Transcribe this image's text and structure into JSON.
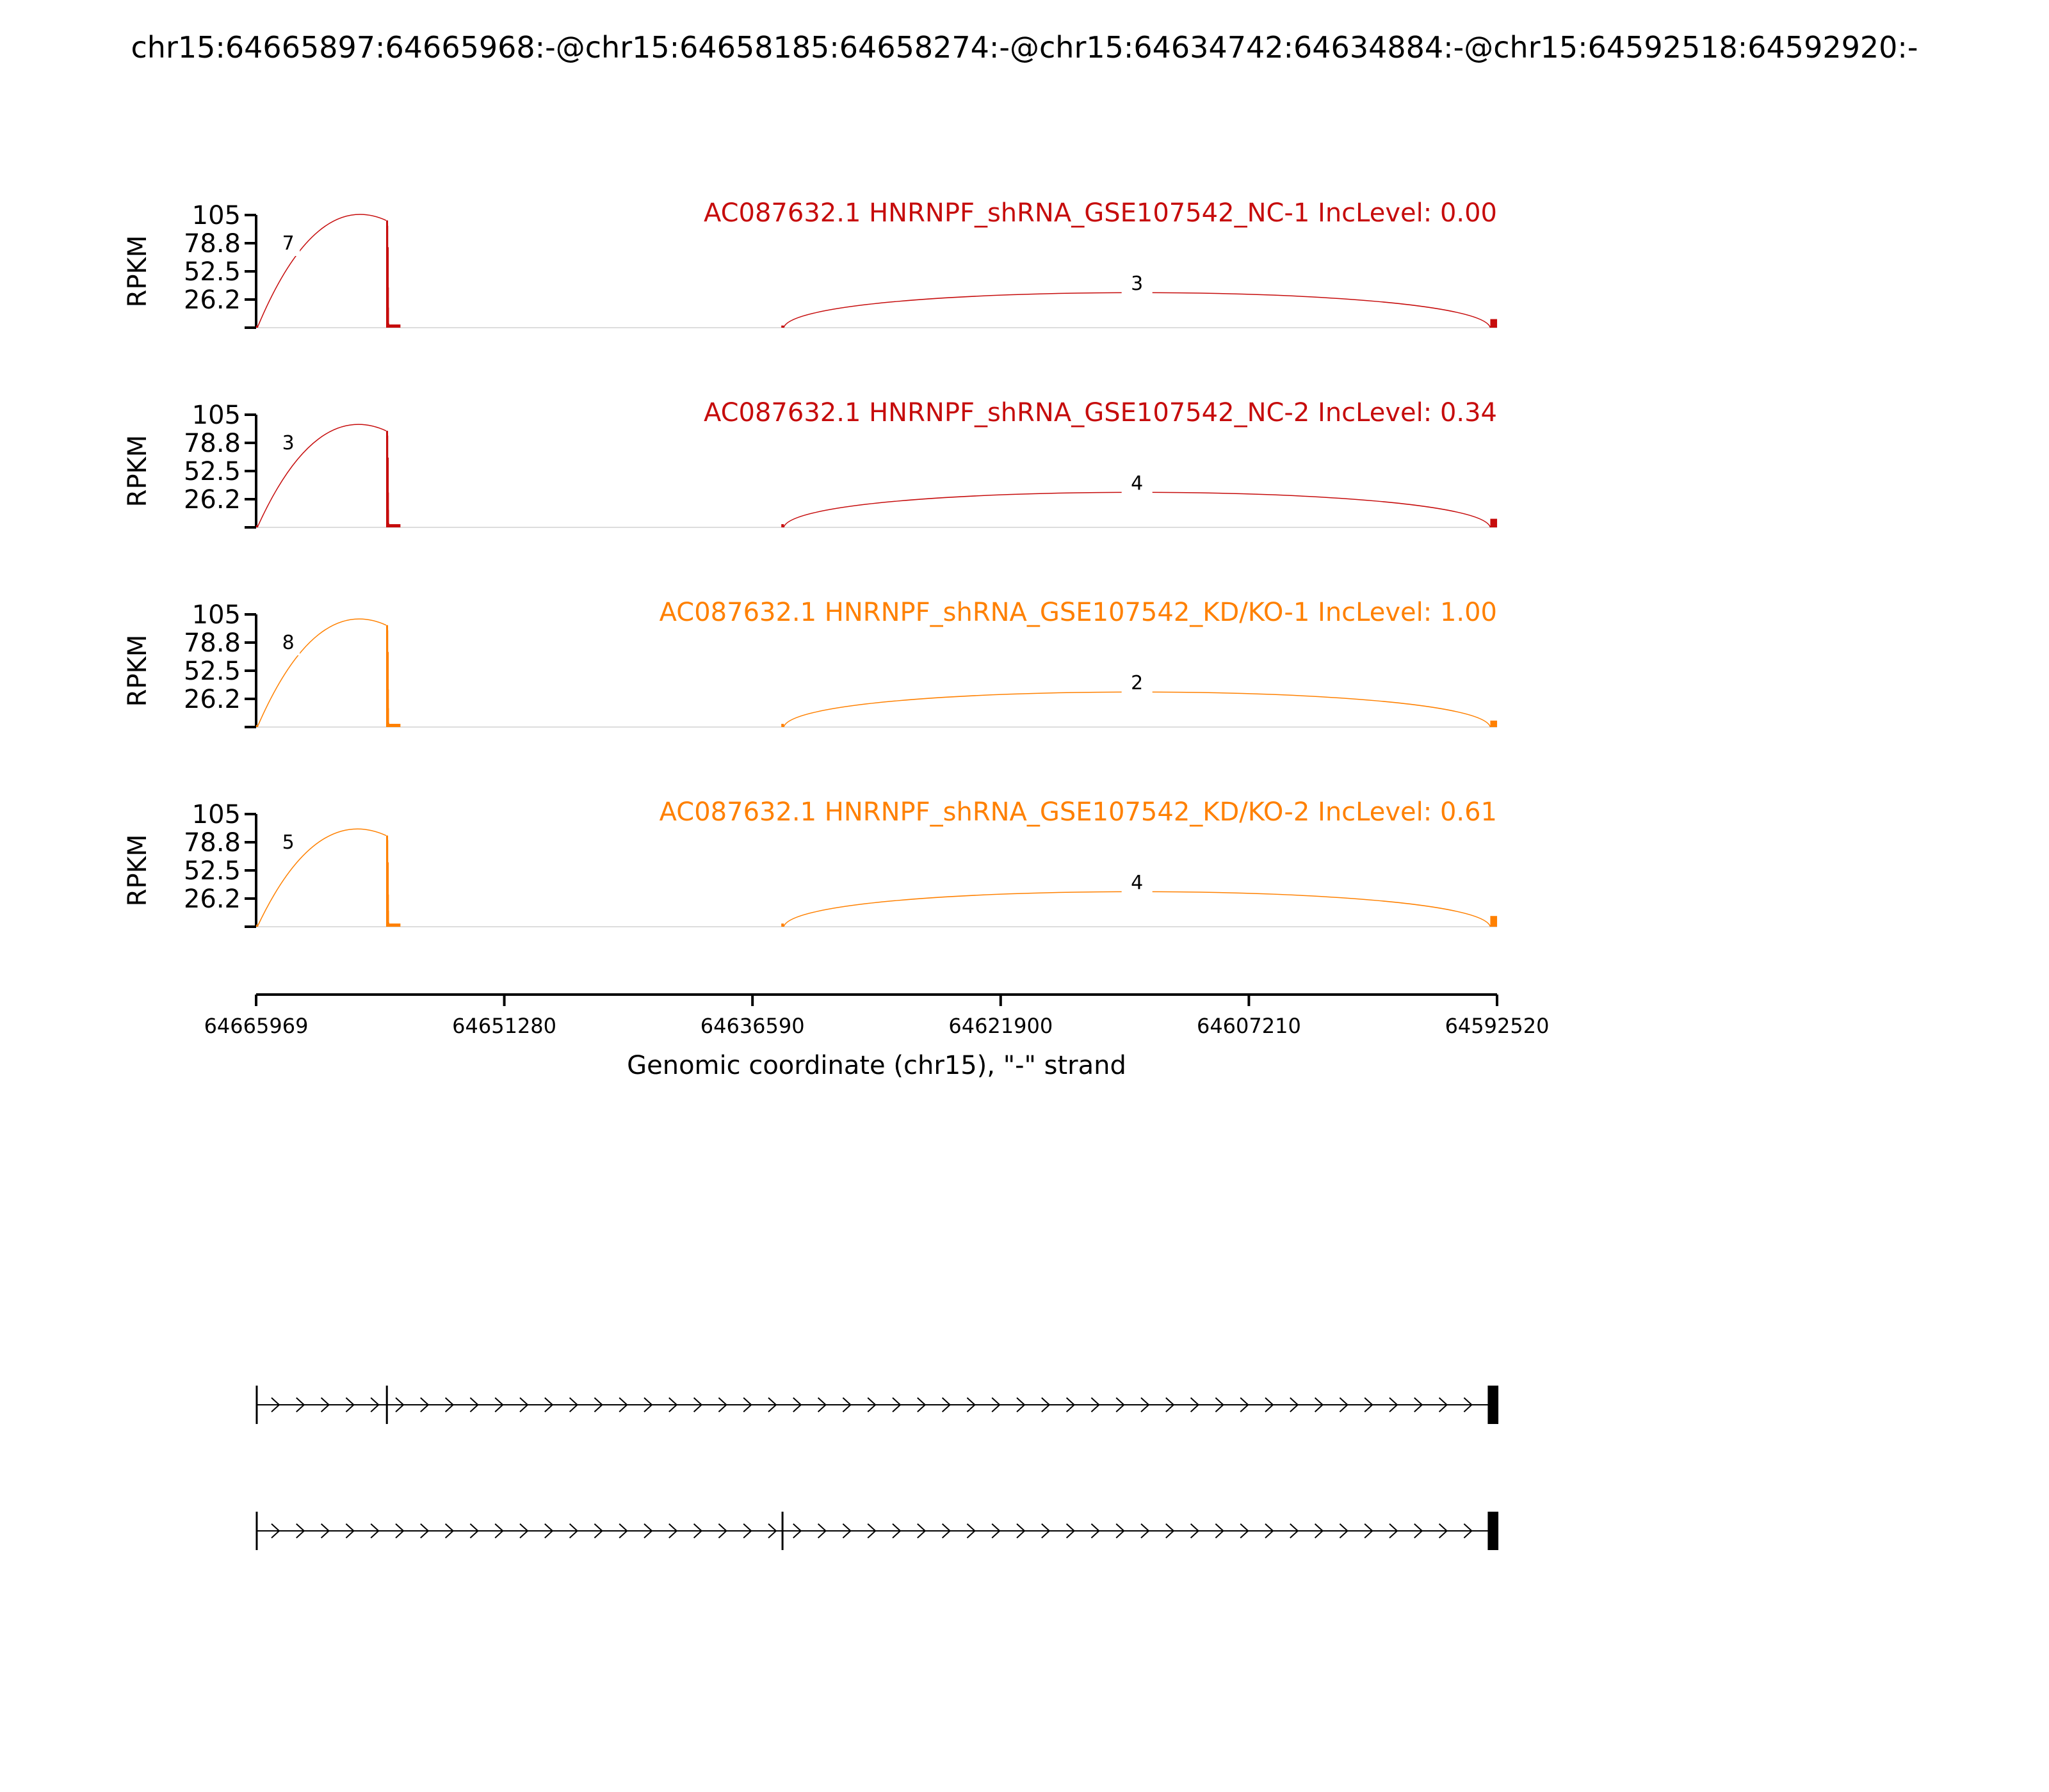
{
  "figure_title": "chr15:64665897:64665968:-@chr15:64658185:64658274:-@chr15:64634742:64634884:-@chr15:64592518:64592920:-",
  "chart_data": {
    "type": "sashimi",
    "x_range": [
      64665969,
      64592520
    ],
    "x_ticks": [
      "64665969",
      "64651280",
      "64636590",
      "64621900",
      "64607210",
      "64592520"
    ],
    "x_label": "Genomic coordinate (chr15), \"-\" strand",
    "y_label": "RPKM",
    "y_ticks": [
      "105",
      "78.8",
      "52.5",
      "26.2"
    ],
    "y_range": [
      0,
      105
    ],
    "exons": [
      {
        "start": 64665968,
        "end": 64665897
      },
      {
        "start": 64658274,
        "end": 64658185
      },
      {
        "start": 64634884,
        "end": 64634742
      },
      {
        "start": 64592920,
        "end": 64592518
      }
    ],
    "samples": [
      {
        "title": "AC087632.1 HNRNPF_shRNA_GSE107542_NC-1 IncLevel: 0.00",
        "color": "#C60C0C",
        "junctions": [
          {
            "from": 64665897,
            "to": 64658274,
            "count": "7"
          },
          {
            "from": 64634742,
            "to": 64592920,
            "count": "3"
          }
        ],
        "coverage": {
          "exon2_peak": 100,
          "exon2_second": 75,
          "exon1": 2,
          "exon3": 2,
          "exon4": 8
        }
      },
      {
        "title": "AC087632.1 HNRNPF_shRNA_GSE107542_NC-2 IncLevel: 0.34",
        "color": "#C60C0C",
        "junctions": [
          {
            "from": 64665897,
            "to": 64658274,
            "count": "3"
          },
          {
            "from": 64634742,
            "to": 64592920,
            "count": "4"
          }
        ],
        "coverage": {
          "exon2_peak": 90,
          "exon2_second": 65,
          "exon1": 2,
          "exon3": 3,
          "exon4": 8
        }
      },
      {
        "title": "AC087632.1 HNRNPF_shRNA_GSE107542_KD/KO-1 IncLevel: 1.00",
        "color": "#FF8000",
        "junctions": [
          {
            "from": 64665897,
            "to": 64658274,
            "count": "8"
          },
          {
            "from": 64634742,
            "to": 64592920,
            "count": "2"
          }
        ],
        "coverage": {
          "exon2_peak": 95,
          "exon2_second": 70,
          "exon1": 2,
          "exon3": 3,
          "exon4": 6
        }
      },
      {
        "title": "AC087632.1 HNRNPF_shRNA_GSE107542_KD/KO-2 IncLevel: 0.61",
        "color": "#FF8000",
        "junctions": [
          {
            "from": 64665897,
            "to": 64658274,
            "count": "5"
          },
          {
            "from": 64634742,
            "to": 64592920,
            "count": "4"
          }
        ],
        "coverage": {
          "exon2_peak": 85,
          "exon2_second": 60,
          "exon1": 2,
          "exon3": 3,
          "exon4": 10
        }
      }
    ],
    "isoforms": [
      {
        "exons": [
          0,
          1,
          3
        ]
      },
      {
        "exons": [
          0,
          2,
          3
        ]
      }
    ]
  }
}
